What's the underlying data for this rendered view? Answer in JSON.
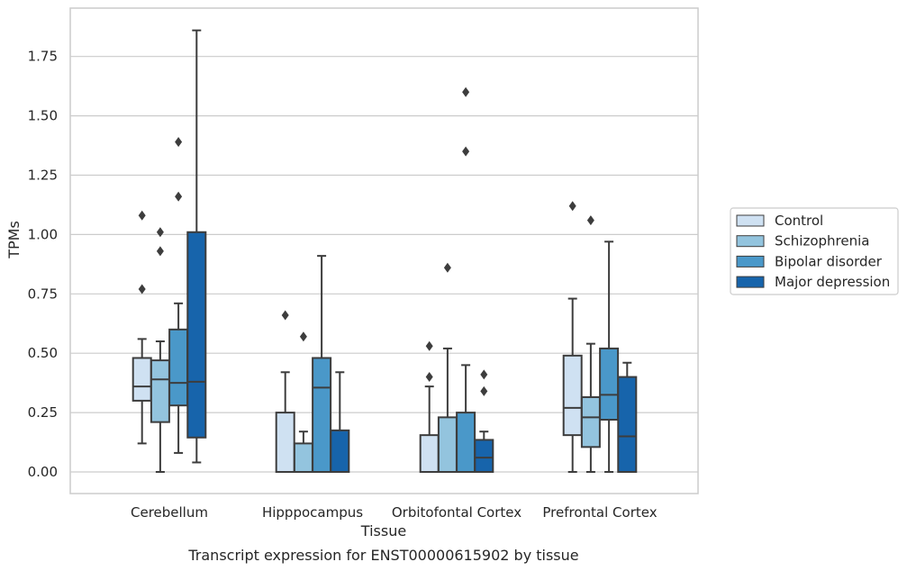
{
  "chart_data": {
    "type": "box",
    "title": "Transcript expression for ENST00000615902 by tissue",
    "xlabel": "Tissue",
    "ylabel": "TPMs",
    "ylim": [
      -0.09,
      1.9
    ],
    "yticks": [
      0.0,
      0.25,
      0.5,
      0.75,
      1.0,
      1.25,
      1.5,
      1.75
    ],
    "ytick_labels": [
      "0.00",
      "0.25",
      "0.50",
      "0.75",
      "1.00",
      "1.25",
      "1.50",
      "1.75"
    ],
    "grid": "horizontal",
    "legend_position": "right",
    "categories": [
      "Cerebellum",
      "Hipppocampus",
      "Orbitofontal Cortex",
      "Prefrontal Cortex"
    ],
    "series": [
      {
        "name": "Control",
        "color": "#cfe1f2",
        "boxes": [
          {
            "whisker_low": 0.12,
            "q1": 0.3,
            "median": 0.36,
            "q3": 0.48,
            "whisker_high": 0.56,
            "outliers": [
              0.77,
              1.08
            ]
          },
          {
            "whisker_low": 0.0,
            "q1": 0.0,
            "median": 0.0,
            "q3": 0.25,
            "whisker_high": 0.42,
            "outliers": [
              0.66
            ]
          },
          {
            "whisker_low": 0.0,
            "q1": 0.0,
            "median": 0.0,
            "q3": 0.155,
            "whisker_high": 0.36,
            "outliers": [
              0.4,
              0.53
            ]
          },
          {
            "whisker_low": 0.0,
            "q1": 0.155,
            "median": 0.27,
            "q3": 0.49,
            "whisker_high": 0.73,
            "outliers": [
              1.12
            ]
          }
        ]
      },
      {
        "name": "Schizophrenia",
        "color": "#93c4de",
        "boxes": [
          {
            "whisker_low": 0.0,
            "q1": 0.21,
            "median": 0.39,
            "q3": 0.47,
            "whisker_high": 0.55,
            "outliers": [
              0.93,
              1.01
            ]
          },
          {
            "whisker_low": 0.0,
            "q1": 0.0,
            "median": 0.0,
            "q3": 0.12,
            "whisker_high": 0.17,
            "outliers": [
              0.57
            ]
          },
          {
            "whisker_low": 0.0,
            "q1": 0.0,
            "median": 0.0,
            "q3": 0.23,
            "whisker_high": 0.52,
            "outliers": [
              0.86
            ]
          },
          {
            "whisker_low": 0.0,
            "q1": 0.105,
            "median": 0.23,
            "q3": 0.315,
            "whisker_high": 0.54,
            "outliers": [
              1.06
            ]
          }
        ]
      },
      {
        "name": "Bipolar disorder",
        "color": "#4a98c9",
        "boxes": [
          {
            "whisker_low": 0.08,
            "q1": 0.28,
            "median": 0.375,
            "q3": 0.6,
            "whisker_high": 0.71,
            "outliers": [
              1.16,
              1.39
            ]
          },
          {
            "whisker_low": 0.0,
            "q1": 0.0,
            "median": 0.355,
            "q3": 0.48,
            "whisker_high": 0.91,
            "outliers": []
          },
          {
            "whisker_low": 0.0,
            "q1": 0.0,
            "median": 0.0,
            "q3": 0.25,
            "whisker_high": 0.45,
            "outliers": [
              1.35,
              1.6
            ]
          },
          {
            "whisker_low": 0.0,
            "q1": 0.22,
            "median": 0.325,
            "q3": 0.52,
            "whisker_high": 0.97,
            "outliers": []
          }
        ]
      },
      {
        "name": "Major depression",
        "color": "#1764ab",
        "boxes": [
          {
            "whisker_low": 0.04,
            "q1": 0.145,
            "median": 0.38,
            "q3": 1.01,
            "whisker_high": 1.86,
            "outliers": []
          },
          {
            "whisker_low": 0.0,
            "q1": 0.0,
            "median": 0.0,
            "q3": 0.175,
            "whisker_high": 0.42,
            "outliers": []
          },
          {
            "whisker_low": 0.0,
            "q1": 0.0,
            "median": 0.06,
            "q3": 0.135,
            "whisker_high": 0.17,
            "outliers": [
              0.34,
              0.41
            ]
          },
          {
            "whisker_low": 0.0,
            "q1": 0.0,
            "median": 0.15,
            "q3": 0.4,
            "whisker_high": 0.46,
            "outliers": []
          }
        ]
      }
    ]
  }
}
